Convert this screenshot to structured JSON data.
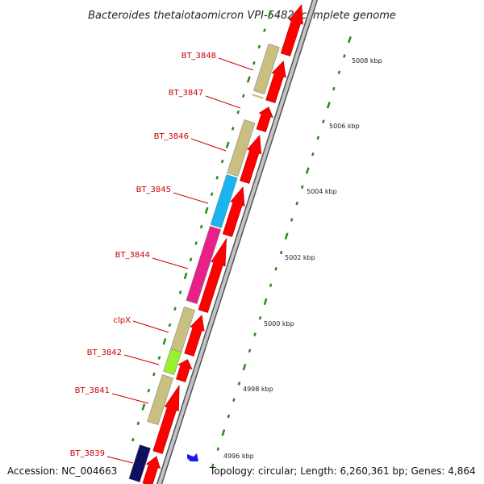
{
  "title": "Bacteroides thetaiotaomicron VPI-5482, complete genome",
  "footer": {
    "accession": "Accession: NC_004663",
    "topology": "Topology: circular; Length: 6,260,361 bp; Genes: 4,864"
  },
  "colors": {
    "cds": "#ff0000",
    "backbone": "#999999",
    "tick": "#2a8a1a",
    "label_line": "#cc0000"
  },
  "scale_labels": [
    "5008 kbp",
    "5006 kbp",
    "5004 kbp",
    "5002 kbp",
    "5000 kbp",
    "4998 kbp",
    "4996 kbp"
  ],
  "genes": [
    {
      "label": "BT_3848",
      "color": "#c8bf80"
    },
    {
      "label": "BT_3847",
      "color": "#c8bf80"
    },
    {
      "label": "BT_3846",
      "color": "#c8bf80"
    },
    {
      "label": "BT_3845",
      "color": "#1ab4f0"
    },
    {
      "label": "BT_3844",
      "color": "#e8208a"
    },
    {
      "label": "clpX",
      "color": "#c8bf80"
    },
    {
      "label": "BT_3842",
      "color": "#99f030"
    },
    {
      "label": "BT_3841",
      "color": "#c8bf80"
    },
    {
      "label": "BT_3839",
      "color": "#101060"
    }
  ]
}
